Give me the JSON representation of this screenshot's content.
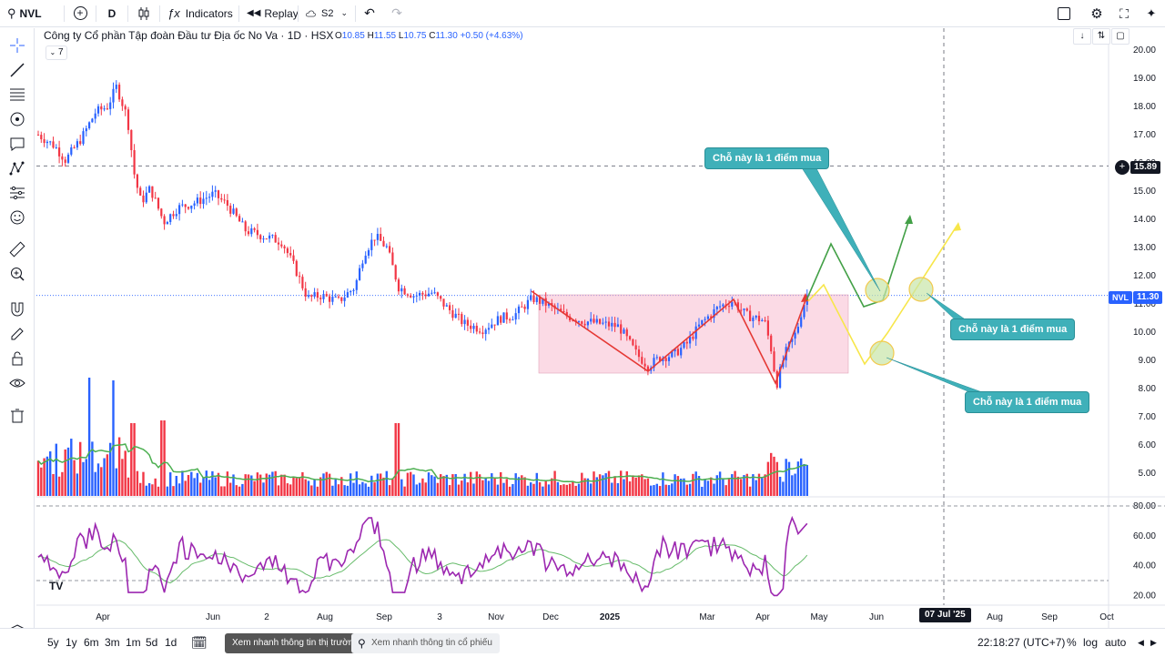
{
  "topbar": {
    "symbol": "NVL",
    "interval": "D",
    "indicators_label": "Indicators",
    "replay_label": "Replay",
    "layout_label": "S2"
  },
  "legend": {
    "title": "Công ty Cổ phần Tập đoàn Đầu tư Địa ốc No Va · 1D · HSX",
    "open_key": "O",
    "open": "10.85",
    "high_key": "H",
    "high": "11.55",
    "low_key": "L",
    "low": "10.75",
    "close_key": "C",
    "close": "11.30",
    "change": "+0.50 (+4.63%)",
    "indicator_count": "7"
  },
  "price_axis": {
    "ticks": [
      "20.00",
      "19.00",
      "18.00",
      "17.00",
      "16.00",
      "15.00",
      "14.00",
      "13.00",
      "12.00",
      "11.00",
      "10.00",
      "9.00",
      "8.00",
      "7.00",
      "6.00",
      "5.00"
    ],
    "crosshair_price": "15.89",
    "last_symbol": "NVL",
    "last_price": "11.30"
  },
  "rsi_axis": {
    "ticks": [
      "80.00",
      "60.00",
      "40.00",
      "20.00"
    ]
  },
  "time_axis": {
    "ticks": [
      "Apr",
      "Jun",
      "2",
      "Aug",
      "Sep",
      "3",
      "Nov",
      "Dec",
      "2025",
      "Mar",
      "Apr",
      "May",
      "Jun",
      "Aug",
      "Sep",
      "Oct"
    ],
    "crosshair_date": "07 Jul '25"
  },
  "callouts": {
    "top": "Chỗ này là 1 điểm mua",
    "middle": "Chỗ này là 1 điểm mua",
    "bottom": "Chỗ này là 1 điểm mua"
  },
  "bottombar": {
    "ranges": [
      "5y",
      "1y",
      "6m",
      "3m",
      "1m",
      "5d",
      "1d"
    ],
    "market_button": "Xem nhanh thông tin thị trường",
    "stock_search_placeholder": "Xem nhanh thông tin cổ phiếu",
    "clock": "22:18:27 (UTC+7)",
    "percent": "%",
    "log": "log",
    "auto": "auto"
  },
  "colors": {
    "up": "#2962ff",
    "down": "#f23645",
    "ma": "#4caf50",
    "rsi": "#9c27b0",
    "box": "#f8bbd0",
    "green_path": "#43a047",
    "yellow_path": "#f5e33b",
    "callout": "#3fb0b9"
  },
  "icons": [
    "search-icon",
    "plus-circle-icon",
    "candles-icon",
    "fx-icon",
    "replay-icon",
    "cloud-icon",
    "undo-icon",
    "redo-icon",
    "square-icon",
    "gear-icon",
    "fullscreen-icon",
    "share-icon"
  ]
}
